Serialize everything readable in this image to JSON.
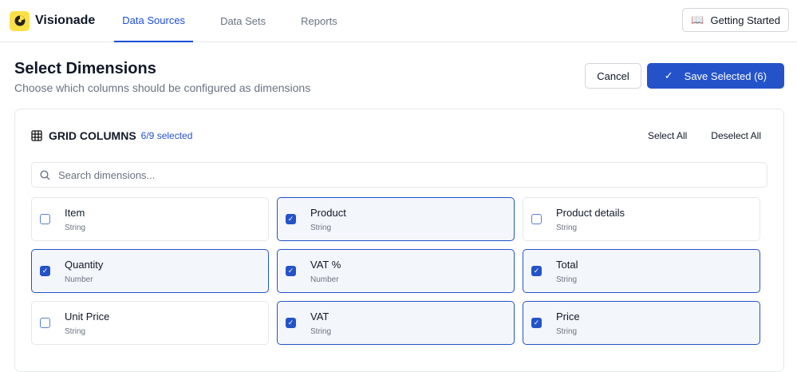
{
  "app": {
    "name": "Visionade",
    "tabs": [
      {
        "label": "Data Sources",
        "active": true
      },
      {
        "label": "Data Sets"
      },
      {
        "label": "Reports"
      }
    ],
    "getting_started": "Getting Started"
  },
  "page": {
    "title": "Select Dimensions",
    "subtitle": "Choose which columns should be configured as dimensions",
    "cancel": "Cancel",
    "save": "Save Selected (6)"
  },
  "panel": {
    "title": "GRID COLUMNS",
    "count": "6/9 selected",
    "select_all": "Select All",
    "deselect_all": "Deselect All",
    "search_placeholder": "Search dimensions...",
    "columns": [
      {
        "name": "Item",
        "type": "String",
        "checked": false
      },
      {
        "name": "Product",
        "type": "String",
        "checked": true
      },
      {
        "name": "Product details",
        "type": "String",
        "checked": false
      },
      {
        "name": "Quantity",
        "type": "Number",
        "checked": true
      },
      {
        "name": "VAT %",
        "type": "Number",
        "checked": true
      },
      {
        "name": "Total",
        "type": "String",
        "checked": true
      },
      {
        "name": "Unit Price",
        "type": "String",
        "checked": false
      },
      {
        "name": "VAT",
        "type": "String",
        "checked": true
      },
      {
        "name": "Price",
        "type": "String",
        "checked": true
      }
    ]
  },
  "colors": {
    "accent": "#2453c9",
    "logo": "#fde047"
  }
}
